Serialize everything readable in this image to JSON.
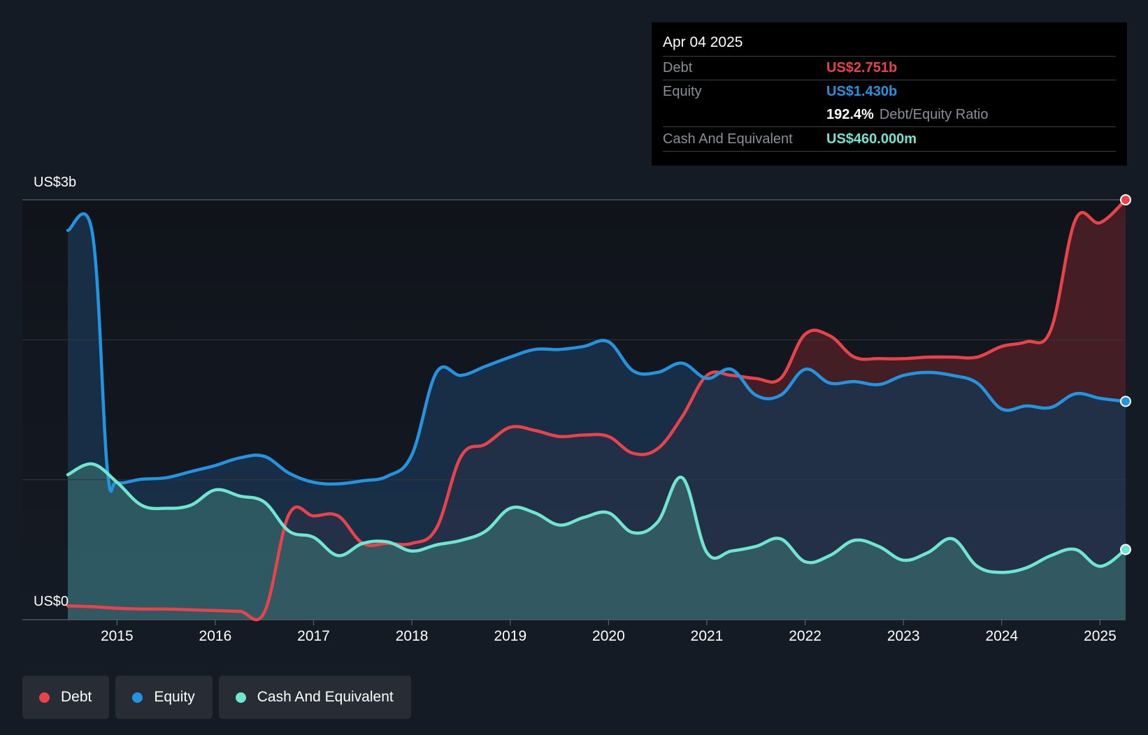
{
  "tooltip": {
    "date": "Apr 04 2025",
    "debt_label": "Debt",
    "debt_value": "US$2.751b",
    "equity_label": "Equity",
    "equity_value": "US$1.430b",
    "ratio_value": "192.4%",
    "ratio_label": "Debt/Equity Ratio",
    "cash_label": "Cash And Equivalent",
    "cash_value": "US$460.000m"
  },
  "legend": [
    {
      "label": "Debt",
      "color": "#e8434a"
    },
    {
      "label": "Equity",
      "color": "#2394e0"
    },
    {
      "label": "Cash And Equivalent",
      "color": "#6ee6d2"
    }
  ],
  "chart_data": {
    "type": "area",
    "title": "",
    "xlabel": "",
    "ylabel": "",
    "y_axis_labels": [
      "US$3b",
      "US$0"
    ],
    "ylim": [
      0,
      2.75
    ],
    "xlim": [
      2014.5,
      2025.26
    ],
    "x_ticks": [
      "2015",
      "2016",
      "2017",
      "2018",
      "2019",
      "2020",
      "2021",
      "2022",
      "2023",
      "2024",
      "2025"
    ],
    "series": [
      {
        "name": "Debt",
        "color": "#e8434a",
        "x": [
          2014.5,
          2014.75,
          2015.0,
          2015.25,
          2015.5,
          2015.75,
          2016.0,
          2016.25,
          2016.5,
          2016.75,
          2017.0,
          2017.25,
          2017.5,
          2017.75,
          2018.0,
          2018.25,
          2018.5,
          2018.75,
          2019.0,
          2019.25,
          2019.5,
          2019.75,
          2020.0,
          2020.25,
          2020.5,
          2020.75,
          2021.0,
          2021.25,
          2021.5,
          2021.75,
          2022.0,
          2022.25,
          2022.5,
          2022.75,
          2023.0,
          2023.25,
          2023.5,
          2023.75,
          2024.0,
          2024.25,
          2024.5,
          2024.75,
          2025.0,
          2025.26
        ],
        "values": [
          0.09,
          0.085,
          0.075,
          0.07,
          0.07,
          0.065,
          0.06,
          0.055,
          0.05,
          0.69,
          0.68,
          0.68,
          0.5,
          0.5,
          0.5,
          0.6,
          1.07,
          1.15,
          1.26,
          1.24,
          1.2,
          1.21,
          1.2,
          1.09,
          1.12,
          1.33,
          1.6,
          1.6,
          1.58,
          1.58,
          1.87,
          1.86,
          1.72,
          1.71,
          1.71,
          1.72,
          1.72,
          1.72,
          1.79,
          1.82,
          1.9,
          2.62,
          2.6,
          2.75
        ]
      },
      {
        "name": "Equity",
        "color": "#2394e0",
        "x": [
          2014.5,
          2014.75,
          2014.9,
          2015.0,
          2015.25,
          2015.5,
          2015.75,
          2016.0,
          2016.25,
          2016.5,
          2016.75,
          2017.0,
          2017.25,
          2017.5,
          2017.75,
          2018.0,
          2018.25,
          2018.5,
          2018.75,
          2019.0,
          2019.25,
          2019.5,
          2019.75,
          2020.0,
          2020.25,
          2020.5,
          2020.75,
          2021.0,
          2021.25,
          2021.5,
          2021.75,
          2022.0,
          2022.25,
          2022.5,
          2022.75,
          2023.0,
          2023.25,
          2023.5,
          2023.75,
          2024.0,
          2024.25,
          2024.5,
          2024.75,
          2025.0,
          2025.26
        ],
        "values": [
          2.55,
          2.53,
          1.0,
          0.9,
          0.92,
          0.93,
          0.97,
          1.01,
          1.06,
          1.07,
          0.96,
          0.9,
          0.89,
          0.91,
          0.94,
          1.08,
          1.62,
          1.6,
          1.66,
          1.72,
          1.77,
          1.77,
          1.79,
          1.82,
          1.63,
          1.62,
          1.68,
          1.58,
          1.64,
          1.47,
          1.47,
          1.64,
          1.55,
          1.56,
          1.54,
          1.6,
          1.62,
          1.6,
          1.55,
          1.38,
          1.4,
          1.39,
          1.48,
          1.45,
          1.43
        ]
      },
      {
        "name": "Cash And Equivalent",
        "color": "#6ee6d2",
        "x": [
          2014.5,
          2014.75,
          2015.0,
          2015.25,
          2015.5,
          2015.75,
          2016.0,
          2016.25,
          2016.5,
          2016.75,
          2017.0,
          2017.25,
          2017.5,
          2017.75,
          2018.0,
          2018.25,
          2018.5,
          2018.75,
          2019.0,
          2019.25,
          2019.5,
          2019.75,
          2020.0,
          2020.25,
          2020.5,
          2020.75,
          2021.0,
          2021.25,
          2021.5,
          2021.75,
          2022.0,
          2022.25,
          2022.5,
          2022.75,
          2023.0,
          2023.25,
          2023.5,
          2023.75,
          2024.0,
          2024.25,
          2024.5,
          2024.75,
          2025.0,
          2025.26
        ],
        "values": [
          0.95,
          1.02,
          0.9,
          0.75,
          0.73,
          0.75,
          0.85,
          0.81,
          0.77,
          0.58,
          0.54,
          0.42,
          0.5,
          0.51,
          0.45,
          0.49,
          0.52,
          0.58,
          0.73,
          0.7,
          0.62,
          0.67,
          0.7,
          0.57,
          0.64,
          0.93,
          0.44,
          0.45,
          0.48,
          0.53,
          0.38,
          0.42,
          0.52,
          0.48,
          0.39,
          0.44,
          0.53,
          0.35,
          0.31,
          0.34,
          0.42,
          0.46,
          0.35,
          0.46
        ]
      }
    ]
  }
}
